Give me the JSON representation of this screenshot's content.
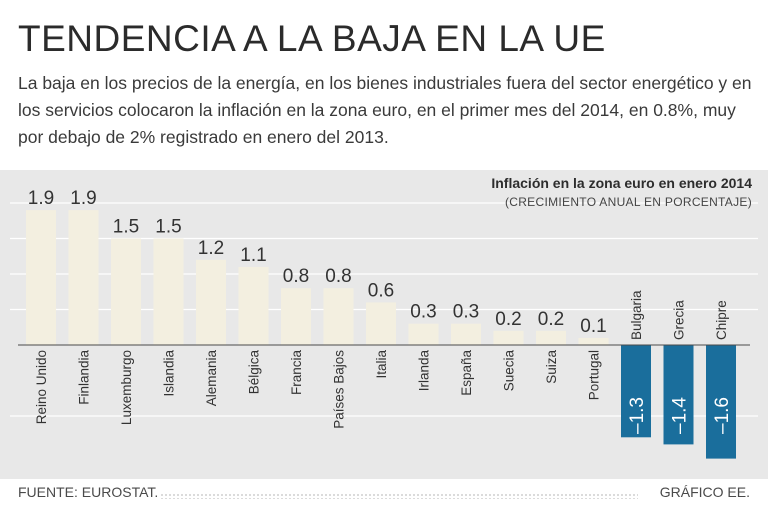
{
  "header": {
    "title": "TENDENCIA A LA BAJA EN LA UE",
    "subtitle": "La baja en los precios de la energía, en los bienes industriales fuera del sector energético y en los servicios colocaron la inflación en la zona euro, en el primer mes del 2014, en 0.8%, muy por debajo de 2% registrado en enero del 2013."
  },
  "chart_data": {
    "type": "bar",
    "title": "Inflación en la zona euro en enero 2014",
    "subtitle": "(CRECIMIENTO ANUAL EN PORCENTAJE)",
    "xlabel": "",
    "ylabel": "",
    "ylim": [
      -1.7,
      2.2
    ],
    "grid": true,
    "categories": [
      "Reino Unido",
      "Finlandia",
      "Luxemburgo",
      "Islandia",
      "Alemania",
      "Bélgica",
      "Francia",
      "Países Bajos",
      "Italia",
      "Irlanda",
      "España",
      "Suecia",
      "Suiza",
      "Portugal",
      "Bulgaria",
      "Grecia",
      "Chipre"
    ],
    "values": [
      1.9,
      1.9,
      1.5,
      1.5,
      1.2,
      1.1,
      0.8,
      0.8,
      0.6,
      0.3,
      0.3,
      0.2,
      0.2,
      0.1,
      -1.3,
      -1.4,
      -1.6
    ],
    "value_labels": [
      "1.9",
      "1.9",
      "1.5",
      "1.5",
      "1.2",
      "1.1",
      "0.8",
      "0.8",
      "0.6",
      "0.3",
      "0.3",
      "0.2",
      "0.2",
      "0.1",
      "–1.3",
      "–1.4",
      "–1.6"
    ],
    "colors": {
      "positive": "#f3efe0",
      "negative": "#1a6e9c",
      "grid": "#ffffff",
      "background": "#e8e8e8"
    }
  },
  "footer": {
    "source": "FUENTE: EUROSTAT.",
    "credit": "GRÁFICO EE."
  }
}
